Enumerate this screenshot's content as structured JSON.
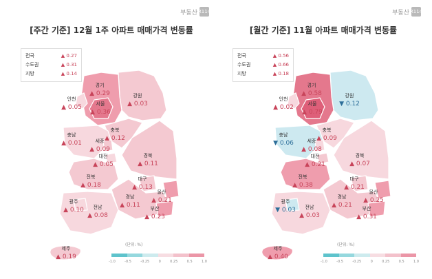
{
  "brand": {
    "text": "부동산",
    "badge": "R114"
  },
  "colors": {
    "up_light": "#f6cdd5",
    "up_mid": "#ef9dad",
    "up_strong": "#e4788d",
    "down_light": "#cfeaf0",
    "down_mid": "#9ed7e1",
    "line": "#ffffff"
  },
  "legend": {
    "unit": "(단위: %)",
    "ticks": [
      "-1.0",
      "-0.5",
      "-0.25",
      "0",
      "0.25",
      "0.5",
      "1.0"
    ],
    "colors": [
      "#5ec3cc",
      "#95d8de",
      "#cdebee",
      "#f7dde2",
      "#f3c1cb",
      "#eb96a7"
    ]
  },
  "panels": {
    "weekly": {
      "title": "[주간 기준] 12월 1주 아파트 매매가격 변동률",
      "summary": [
        {
          "label": "전국",
          "value": "▲ 0.27"
        },
        {
          "label": "수도권",
          "value": "▲ 0.31"
        },
        {
          "label": "지방",
          "value": "▲ 0.14"
        }
      ],
      "regions": {
        "gyeonggi": {
          "name": "경기",
          "value": "▲ 0.29",
          "dir": "up"
        },
        "incheon": {
          "name": "인천",
          "value": "▲ 0.05",
          "dir": "up"
        },
        "seoul": {
          "name": "서울",
          "value": "▲ 0.36",
          "dir": "up"
        },
        "gangwon": {
          "name": "강원",
          "value": "▲ 0.03",
          "dir": "up"
        },
        "chungnam": {
          "name": "충남",
          "value": "▲ 0.01",
          "dir": "up"
        },
        "chungbuk": {
          "name": "충북",
          "value": "▲ 0.12",
          "dir": "up"
        },
        "sejong": {
          "name": "세종",
          "value": "▲ 0.09",
          "dir": "up"
        },
        "daejeon": {
          "name": "대전",
          "value": "▲ 0.05",
          "dir": "up"
        },
        "gyeongbuk": {
          "name": "경북",
          "value": "▲ 0.11",
          "dir": "up"
        },
        "jeonbuk": {
          "name": "전북",
          "value": "▲ 0.18",
          "dir": "up"
        },
        "daegu": {
          "name": "대구",
          "value": "▲ 0.13",
          "dir": "up"
        },
        "ulsan": {
          "name": "울산",
          "value": "▲ 0.21",
          "dir": "up"
        },
        "gwangju": {
          "name": "광주",
          "value": "▲ 0.10",
          "dir": "up"
        },
        "jeonnam": {
          "name": "전남",
          "value": "▲ 0.08",
          "dir": "up"
        },
        "gyeongnam": {
          "name": "경남",
          "value": "▲ 0.11",
          "dir": "up"
        },
        "busan": {
          "name": "부산",
          "value": "▲ 0.23",
          "dir": "up"
        },
        "jeju": {
          "name": "제주",
          "value": "▲ 0.19",
          "dir": "up"
        }
      }
    },
    "monthly": {
      "title": "[월간 기준] 11월 아파트 매매가격 변동률",
      "summary": [
        {
          "label": "전국",
          "value": "▲ 0.56"
        },
        {
          "label": "수도권",
          "value": "▲ 0.66"
        },
        {
          "label": "지방",
          "value": "▲ 0.18"
        }
      ],
      "regions": {
        "gyeonggi": {
          "name": "경기",
          "value": "▲ 0.58",
          "dir": "up"
        },
        "incheon": {
          "name": "인천",
          "value": "▲ 0.02",
          "dir": "up"
        },
        "seoul": {
          "name": "서울",
          "value": "▲ 0.79",
          "dir": "up"
        },
        "gangwon": {
          "name": "강원",
          "value": "▼ 0.12",
          "dir": "down"
        },
        "chungnam": {
          "name": "충남",
          "value": "▼ 0.06",
          "dir": "down"
        },
        "chungbuk": {
          "name": "충북",
          "value": "▲ 0.09",
          "dir": "up"
        },
        "sejong": {
          "name": "세종",
          "value": "▲ 0.08",
          "dir": "up"
        },
        "daejeon": {
          "name": "대전",
          "value": "▲ 0.21",
          "dir": "up"
        },
        "gyeongbuk": {
          "name": "경북",
          "value": "▲ 0.07",
          "dir": "up"
        },
        "jeonbuk": {
          "name": "전북",
          "value": "▲ 0.38",
          "dir": "up"
        },
        "daegu": {
          "name": "대구",
          "value": "▲ 0.21",
          "dir": "up"
        },
        "ulsan": {
          "name": "울산",
          "value": "▲ 0.25",
          "dir": "up"
        },
        "gwangju": {
          "name": "광주",
          "value": "▼ 0.03",
          "dir": "down"
        },
        "jeonnam": {
          "name": "전남",
          "value": "▲ 0.03",
          "dir": "up"
        },
        "gyeongnam": {
          "name": "경남",
          "value": "▲ 0.21",
          "dir": "up"
        },
        "busan": {
          "name": "부산",
          "value": "▲ 0.31",
          "dir": "up"
        },
        "jeju": {
          "name": "제주",
          "value": "▲ 0.40",
          "dir": "up"
        }
      }
    }
  }
}
